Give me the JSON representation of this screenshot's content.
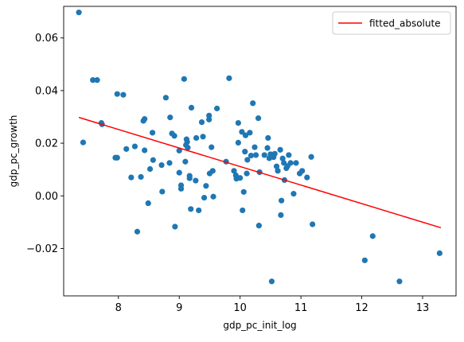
{
  "chart_data": {
    "type": "scatter",
    "xlabel": "gdp_pc_init_log",
    "ylabel": "gdp_pc_growth",
    "xlim": [
      7.1,
      13.55
    ],
    "ylim": [
      -0.038,
      0.072
    ],
    "xticks": [
      8,
      9,
      10,
      11,
      12,
      13
    ],
    "yticks": [
      -0.02,
      0.0,
      0.02,
      0.04,
      0.06
    ],
    "ytick_labels": [
      "−0.02",
      "0.00",
      "0.02",
      "0.04",
      "0.06"
    ],
    "grid": false,
    "legend": {
      "placement": "top-right",
      "entries": [
        "fitted_absolute"
      ]
    },
    "colors": {
      "points": "#1f77b4",
      "fit_line": "#ff0000"
    },
    "fit_line": {
      "name": "fitted_absolute",
      "x": [
        7.35,
        13.3
      ],
      "y": [
        0.0298,
        -0.0121
      ]
    },
    "points": [
      [
        7.35,
        0.0697
      ],
      [
        7.42,
        0.0203
      ],
      [
        7.58,
        0.044
      ],
      [
        7.65,
        0.044
      ],
      [
        7.72,
        0.0277
      ],
      [
        7.73,
        0.0272
      ],
      [
        7.95,
        0.0145
      ],
      [
        7.98,
        0.0145
      ],
      [
        7.98,
        0.0387
      ],
      [
        8.08,
        0.0384
      ],
      [
        8.13,
        0.0178
      ],
      [
        8.21,
        0.007
      ],
      [
        8.27,
        0.0188
      ],
      [
        8.31,
        -0.0136
      ],
      [
        8.37,
        0.0072
      ],
      [
        8.41,
        0.0285
      ],
      [
        8.43,
        0.0292
      ],
      [
        8.43,
        0.0173
      ],
      [
        8.49,
        -0.0028
      ],
      [
        8.52,
        0.0102
      ],
      [
        8.56,
        0.024
      ],
      [
        8.57,
        0.0136
      ],
      [
        8.71,
        0.0117
      ],
      [
        8.72,
        0.0016
      ],
      [
        8.78,
        0.0373
      ],
      [
        8.84,
        0.0125
      ],
      [
        8.85,
        0.0298
      ],
      [
        8.88,
        0.0237
      ],
      [
        8.92,
        0.0228
      ],
      [
        8.93,
        -0.0117
      ],
      [
        9.0,
        0.0172
      ],
      [
        9.0,
        0.0088
      ],
      [
        9.03,
        0.0027
      ],
      [
        9.03,
        0.004
      ],
      [
        9.08,
        0.0444
      ],
      [
        9.1,
        0.013
      ],
      [
        9.11,
        0.0193
      ],
      [
        9.12,
        0.0215
      ],
      [
        9.13,
        0.0205
      ],
      [
        9.14,
        0.0183
      ],
      [
        9.17,
        0.0067
      ],
      [
        9.17,
        0.0076
      ],
      [
        9.19,
        -0.005
      ],
      [
        9.2,
        0.0335
      ],
      [
        9.27,
        0.0058
      ],
      [
        9.28,
        0.022
      ],
      [
        9.32,
        -0.0055
      ],
      [
        9.37,
        0.028
      ],
      [
        9.39,
        0.0225
      ],
      [
        9.41,
        -0.0007
      ],
      [
        9.44,
        0.0038
      ],
      [
        9.49,
        0.029
      ],
      [
        9.49,
        0.0305
      ],
      [
        9.5,
        0.0085
      ],
      [
        9.53,
        0.0185
      ],
      [
        9.55,
        0.0095
      ],
      [
        9.56,
        -0.0003
      ],
      [
        9.62,
        0.0332
      ],
      [
        9.77,
        0.013
      ],
      [
        9.82,
        0.0447
      ],
      [
        9.9,
        0.0095
      ],
      [
        9.93,
        0.0078
      ],
      [
        9.94,
        0.0065
      ],
      [
        9.97,
        0.0202
      ],
      [
        9.97,
        0.0277
      ],
      [
        10.0,
        0.0068
      ],
      [
        10.03,
        0.0243
      ],
      [
        10.04,
        -0.0055
      ],
      [
        10.06,
        0.0015
      ],
      [
        10.08,
        0.0168
      ],
      [
        10.09,
        0.023
      ],
      [
        10.11,
        0.0085
      ],
      [
        10.12,
        0.0137
      ],
      [
        10.16,
        0.024
      ],
      [
        10.18,
        0.0153
      ],
      [
        10.21,
        0.0352
      ],
      [
        10.24,
        0.0185
      ],
      [
        10.26,
        0.0155
      ],
      [
        10.3,
        0.0295
      ],
      [
        10.31,
        -0.0113
      ],
      [
        10.32,
        0.009
      ],
      [
        10.4,
        0.0155
      ],
      [
        10.45,
        0.0182
      ],
      [
        10.46,
        0.022
      ],
      [
        10.48,
        0.0143
      ],
      [
        10.5,
        0.0158
      ],
      [
        10.52,
        -0.0325
      ],
      [
        10.55,
        0.0147
      ],
      [
        10.57,
        0.016
      ],
      [
        10.6,
        0.0112
      ],
      [
        10.62,
        0.0095
      ],
      [
        10.66,
        0.0175
      ],
      [
        10.67,
        -0.0073
      ],
      [
        10.68,
        -0.0018
      ],
      [
        10.7,
        0.0142
      ],
      [
        10.72,
        0.0125
      ],
      [
        10.73,
        0.006
      ],
      [
        10.76,
        0.0105
      ],
      [
        10.78,
        0.0113
      ],
      [
        10.8,
        0.0155
      ],
      [
        10.83,
        0.0125
      ],
      [
        10.88,
        0.0008
      ],
      [
        10.92,
        0.0125
      ],
      [
        10.98,
        0.0085
      ],
      [
        11.02,
        0.0095
      ],
      [
        11.1,
        0.007
      ],
      [
        11.17,
        0.0148
      ],
      [
        11.19,
        -0.0108
      ],
      [
        12.05,
        -0.0245
      ],
      [
        12.18,
        -0.0153
      ],
      [
        12.62,
        -0.0325
      ],
      [
        13.28,
        -0.0218
      ]
    ]
  }
}
